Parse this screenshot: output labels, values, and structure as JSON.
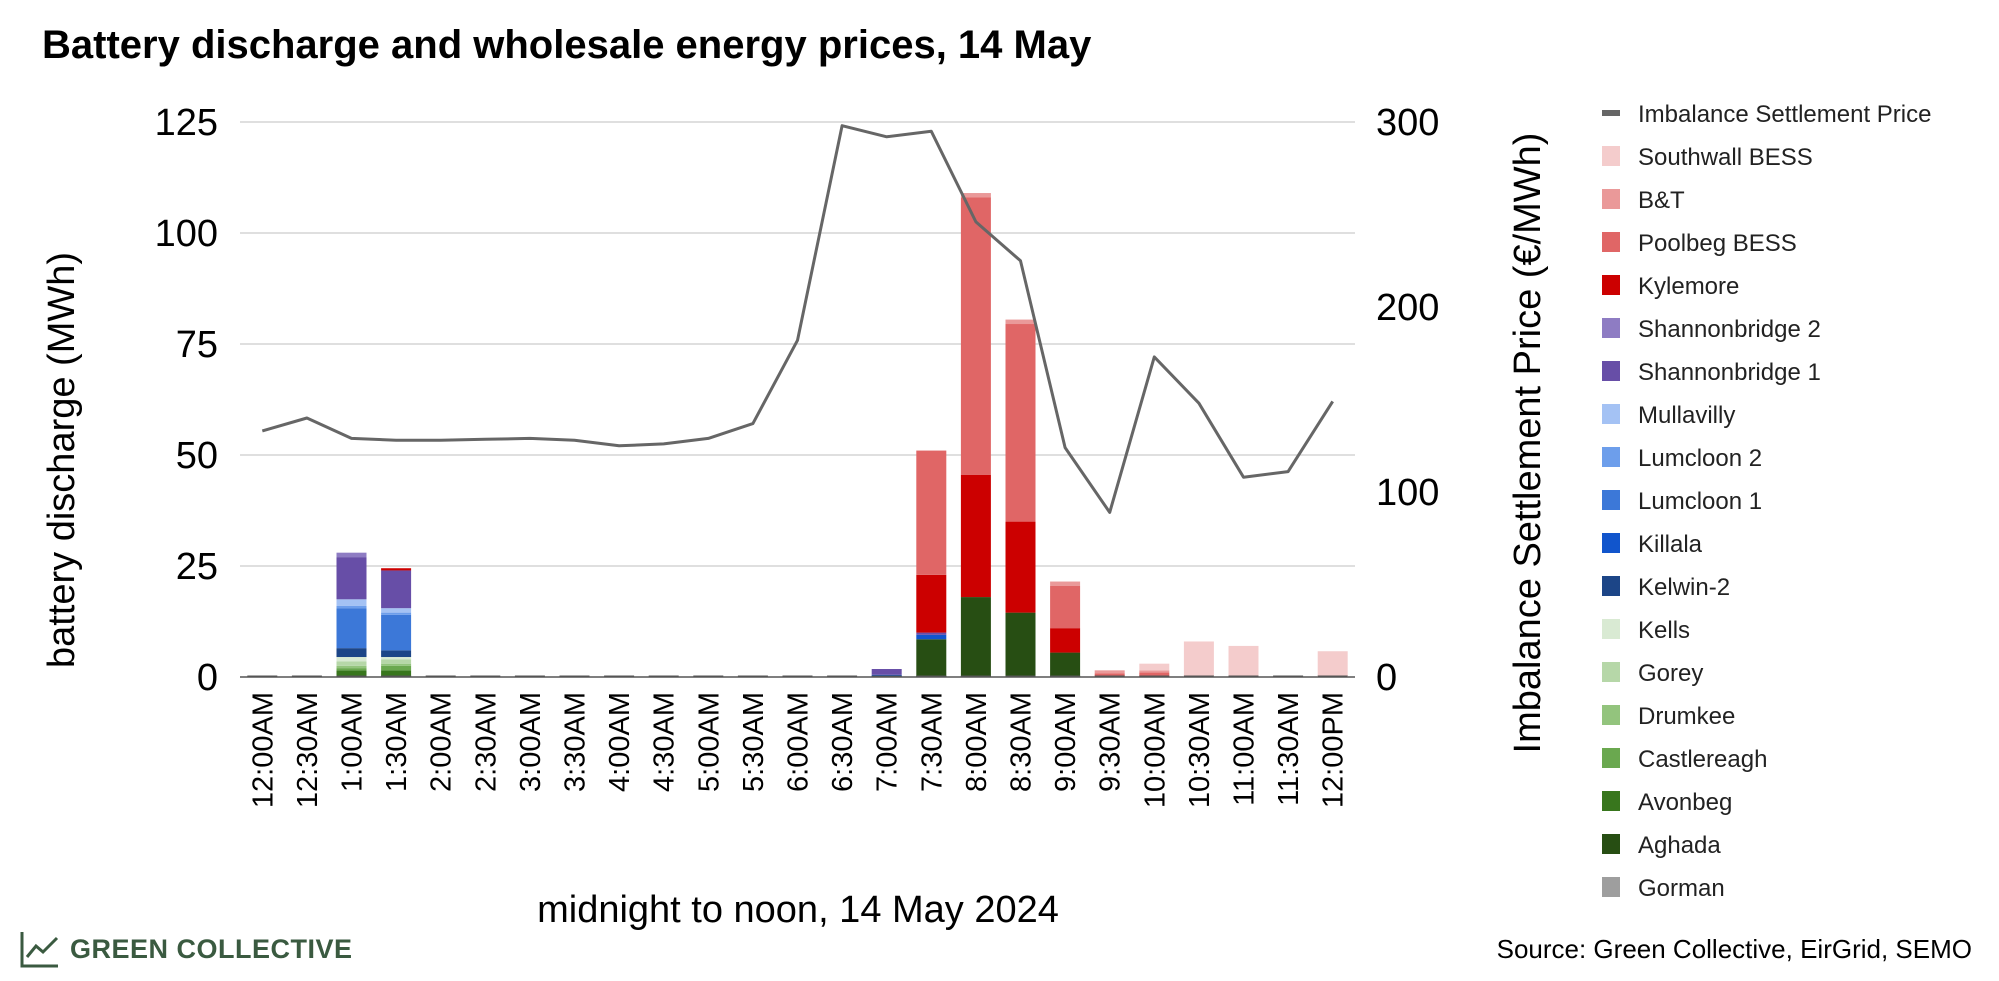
{
  "chart_data": {
    "type": "bar",
    "title": "Battery discharge and wholesale energy prices, 14 May",
    "xlabel": "midnight to noon, 14 May 2024",
    "ylabel": "battery discharge (MWh)",
    "y2label": "Imbalance Settlement Price (€/MWh)",
    "ylim": [
      0,
      125
    ],
    "y2lim": [
      0,
      300
    ],
    "yticks": [
      "0",
      "25",
      "50",
      "75",
      "100",
      "125"
    ],
    "y2ticks": [
      "0",
      "100",
      "200",
      "300"
    ],
    "grid": true,
    "stacked": true,
    "legend_position": "right",
    "categories": [
      "12:00AM",
      "12:30AM",
      "1:00AM",
      "1:30AM",
      "2:00AM",
      "2:30AM",
      "3:00AM",
      "3:30AM",
      "4:00AM",
      "4:30AM",
      "5:00AM",
      "5:30AM",
      "6:00AM",
      "6:30AM",
      "7:00AM",
      "7:30AM",
      "8:00AM",
      "8:30AM",
      "9:00AM",
      "9:30AM",
      "10:00AM",
      "10:30AM",
      "11:00AM",
      "11:30AM",
      "12:00PM"
    ],
    "series": [
      {
        "name": "Gorman",
        "color": "#9e9e9e",
        "values": [
          0,
          0,
          0,
          0,
          0,
          0,
          0,
          0,
          0,
          0,
          0,
          0,
          0,
          0,
          0,
          0,
          0,
          0,
          0,
          0,
          0,
          0,
          0,
          0,
          0
        ]
      },
      {
        "name": "Aghada",
        "color": "#274e13",
        "values": [
          0,
          0,
          0,
          0,
          0,
          0,
          0,
          0,
          0,
          0,
          0,
          0,
          0,
          0,
          0,
          8.5,
          18,
          14.5,
          5.5,
          0,
          0,
          0,
          0,
          0,
          0
        ]
      },
      {
        "name": "Avonbeg",
        "color": "#38761d",
        "values": [
          0,
          0,
          1.5,
          1.5,
          0,
          0,
          0,
          0,
          0,
          0,
          0,
          0,
          0,
          0,
          0,
          0,
          0,
          0,
          0,
          0,
          0,
          0,
          0,
          0,
          0
        ]
      },
      {
        "name": "Castlereagh",
        "color": "#6aa84f",
        "values": [
          0,
          0,
          0.5,
          1,
          0,
          0,
          0,
          0,
          0,
          0,
          0,
          0,
          0,
          0,
          0,
          0,
          0,
          0,
          0,
          0,
          0,
          0,
          0,
          0,
          0
        ]
      },
      {
        "name": "Drumkee",
        "color": "#93c47d",
        "values": [
          0,
          0,
          0.5,
          0.5,
          0,
          0,
          0,
          0,
          0,
          0,
          0,
          0,
          0,
          0,
          0,
          0,
          0,
          0,
          0,
          0,
          0,
          0,
          0,
          0,
          0
        ]
      },
      {
        "name": "Gorey",
        "color": "#b6d7a8",
        "values": [
          0,
          0,
          1,
          1,
          0,
          0,
          0,
          0,
          0,
          0,
          0,
          0,
          0,
          0,
          0,
          0,
          0,
          0,
          0,
          0,
          0,
          0,
          0,
          0,
          0
        ]
      },
      {
        "name": "Kells",
        "color": "#d9ead3",
        "values": [
          0,
          0,
          1,
          0.5,
          0,
          0,
          0,
          0,
          0,
          0,
          0,
          0,
          0,
          0,
          0,
          0,
          0,
          0,
          0,
          0,
          0,
          0,
          0,
          0,
          0
        ]
      },
      {
        "name": "Kelwin-2",
        "color": "#1c4587",
        "values": [
          0,
          0,
          2,
          1.5,
          0,
          0,
          0,
          0,
          0,
          0,
          0,
          0,
          0,
          0,
          0,
          0,
          0,
          0,
          0,
          0,
          0,
          0,
          0,
          0,
          0
        ]
      },
      {
        "name": "Killala",
        "color": "#1155cc",
        "values": [
          0,
          0,
          0,
          0,
          0,
          0,
          0,
          0,
          0,
          0,
          0,
          0,
          0,
          0,
          0.5,
          1,
          0,
          0,
          0,
          0,
          0,
          0,
          0,
          0,
          0
        ]
      },
      {
        "name": "Lumcloon 1",
        "color": "#3c78d8",
        "values": [
          0,
          0,
          9,
          8,
          0,
          0,
          0,
          0,
          0,
          0,
          0,
          0,
          0,
          0,
          0,
          0,
          0,
          0,
          0,
          0,
          0,
          0,
          0,
          0,
          0
        ]
      },
      {
        "name": "Lumcloon 2",
        "color": "#6d9eeb",
        "values": [
          0,
          0,
          0.5,
          0.5,
          0,
          0,
          0,
          0,
          0,
          0,
          0,
          0,
          0,
          0,
          0,
          0,
          0,
          0,
          0,
          0,
          0,
          0,
          0,
          0,
          0
        ]
      },
      {
        "name": "Mullavilly",
        "color": "#a4c2f4",
        "values": [
          0,
          0,
          1.5,
          1,
          0,
          0,
          0,
          0,
          0,
          0,
          0,
          0,
          0,
          0,
          0,
          0,
          0,
          0,
          0,
          0,
          0,
          0,
          0,
          0,
          0
        ]
      },
      {
        "name": "Shannonbridge 1",
        "color": "#674ea7",
        "values": [
          0,
          0,
          9.5,
          8.5,
          0,
          0,
          0,
          0,
          0,
          0,
          0,
          0,
          0,
          0,
          1.3,
          0.5,
          0,
          0,
          0,
          0,
          0,
          0,
          0,
          0,
          0
        ]
      },
      {
        "name": "Shannonbridge 2",
        "color": "#8e7cc3",
        "values": [
          0,
          0,
          1,
          0,
          0,
          0,
          0,
          0,
          0,
          0,
          0,
          0,
          0,
          0,
          0,
          0,
          0,
          0,
          0,
          0,
          0,
          0,
          0,
          0,
          0
        ]
      },
      {
        "name": "Kylemore",
        "color": "#cc0000",
        "values": [
          0,
          0,
          0,
          0.5,
          0,
          0,
          0,
          0,
          0,
          0,
          0,
          0,
          0,
          0,
          0,
          13,
          27.5,
          20.5,
          5.5,
          0,
          0,
          0,
          0,
          0,
          0
        ]
      },
      {
        "name": "Poolbeg BESS",
        "color": "#e06666",
        "values": [
          0,
          0,
          0,
          0,
          0,
          0,
          0,
          0,
          0,
          0,
          0,
          0,
          0,
          0,
          0,
          28,
          62.5,
          44.5,
          9.5,
          0.8,
          1,
          0,
          0,
          0,
          0
        ]
      },
      {
        "name": "B&T",
        "color": "#ea9999",
        "values": [
          0,
          0,
          0,
          0,
          0,
          0,
          0,
          0,
          0,
          0,
          0,
          0,
          0,
          0,
          0,
          0,
          1,
          1,
          1,
          0.7,
          0.5,
          0,
          0,
          0,
          0
        ]
      },
      {
        "name": "Southwall BESS",
        "color": "#f4cccc",
        "values": [
          0,
          0,
          0,
          0,
          0,
          0,
          0,
          0,
          0,
          0,
          0,
          0,
          0,
          0,
          0,
          0,
          0,
          0,
          0,
          0,
          1.5,
          8,
          7,
          0,
          5.8
        ]
      }
    ],
    "line_series": {
      "name": "Imbalance Settlement Price",
      "color": "#666666",
      "axis": "right",
      "values": [
        133,
        140,
        129,
        128,
        128,
        128.5,
        129,
        128,
        125,
        126,
        129,
        137,
        182,
        298,
        292,
        295,
        246,
        225,
        124,
        89,
        173,
        148,
        108,
        111,
        149
      ]
    },
    "legend_order": [
      "Imbalance Settlement Price",
      "Southwall BESS",
      "B&T",
      "Poolbeg BESS",
      "Kylemore",
      "Shannonbridge 2",
      "Shannonbridge 1",
      "Mullavilly",
      "Lumcloon 2",
      "Lumcloon 1",
      "Killala",
      "Kelwin-2",
      "Kells",
      "Gorey",
      "Drumkee",
      "Castlereagh",
      "Avonbeg",
      "Aghada",
      "Gorman"
    ]
  },
  "branding": {
    "name": "GREEN COLLECTIVE",
    "icon": "trend-line-icon",
    "color": "#3a5a40"
  },
  "source": "Source: Green Collective, EirGrid, SEMO"
}
